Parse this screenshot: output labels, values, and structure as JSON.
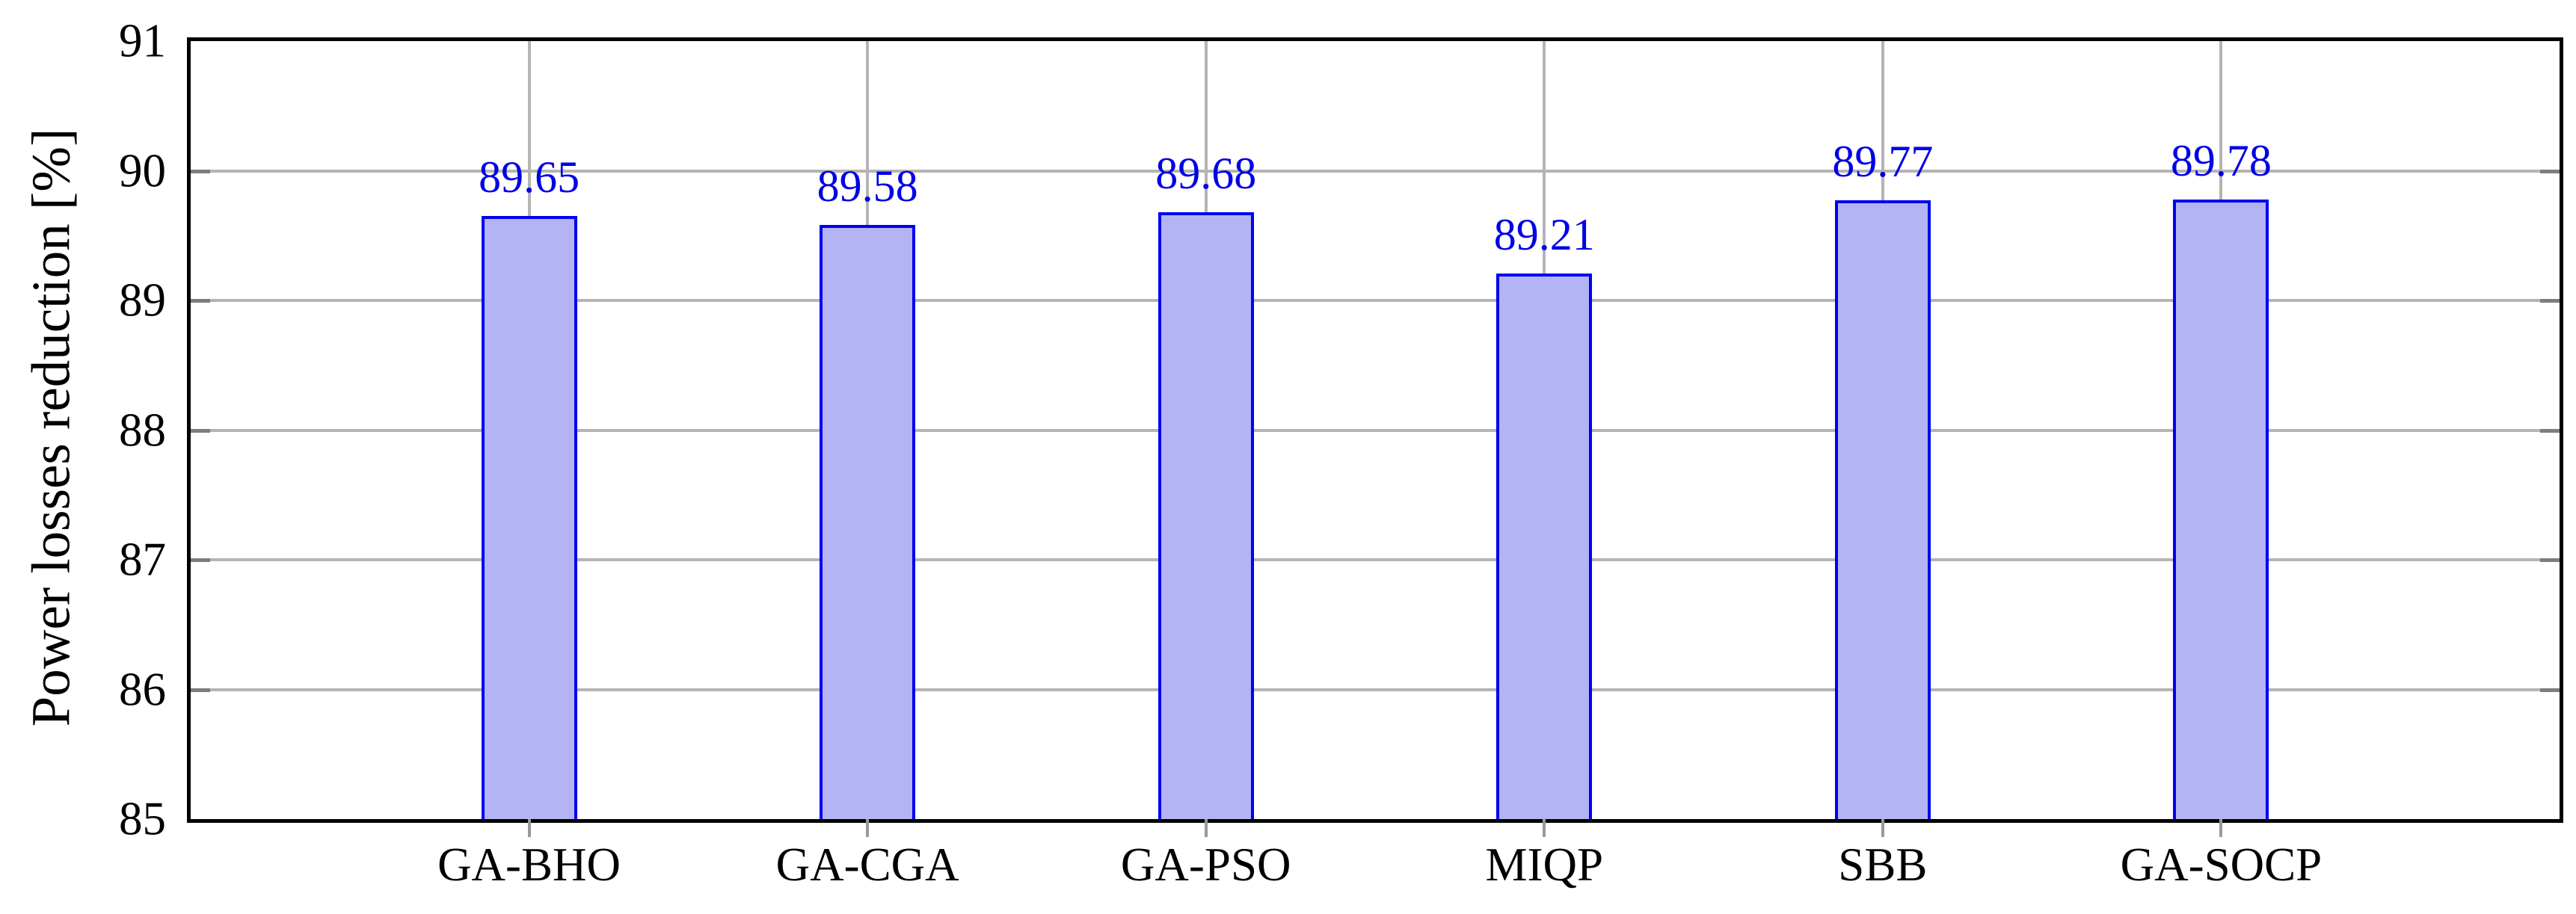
{
  "chart_data": {
    "type": "bar",
    "title": "",
    "categories": [
      "GA-BHO",
      "GA-CGA",
      "GA-PSO",
      "MIQP",
      "SBB",
      "GA-SOCP"
    ],
    "values": [
      89.65,
      89.58,
      89.68,
      89.21,
      89.77,
      89.78
    ],
    "value_labels": [
      "89.65",
      "89.58",
      "89.68",
      "89.21",
      "89.77",
      "89.78"
    ],
    "xlabel": "",
    "ylabel": "Power losses reduction [%]",
    "ylim": [
      85,
      91
    ],
    "yticks": [
      85,
      86,
      87,
      88,
      89,
      90,
      91
    ],
    "ytick_labels": [
      "85",
      "86",
      "87",
      "88",
      "89",
      "90",
      "91"
    ],
    "grid": "both",
    "legend_position": "none",
    "colors": {
      "bar_fill": "#b4b4f4",
      "bar_border": "#0000f0",
      "value_label": "#0000e6",
      "gridline": "#b4b4b4",
      "spine_tick": "#7d7d7d",
      "x_tick": "#999999",
      "frame": "#000000"
    }
  }
}
